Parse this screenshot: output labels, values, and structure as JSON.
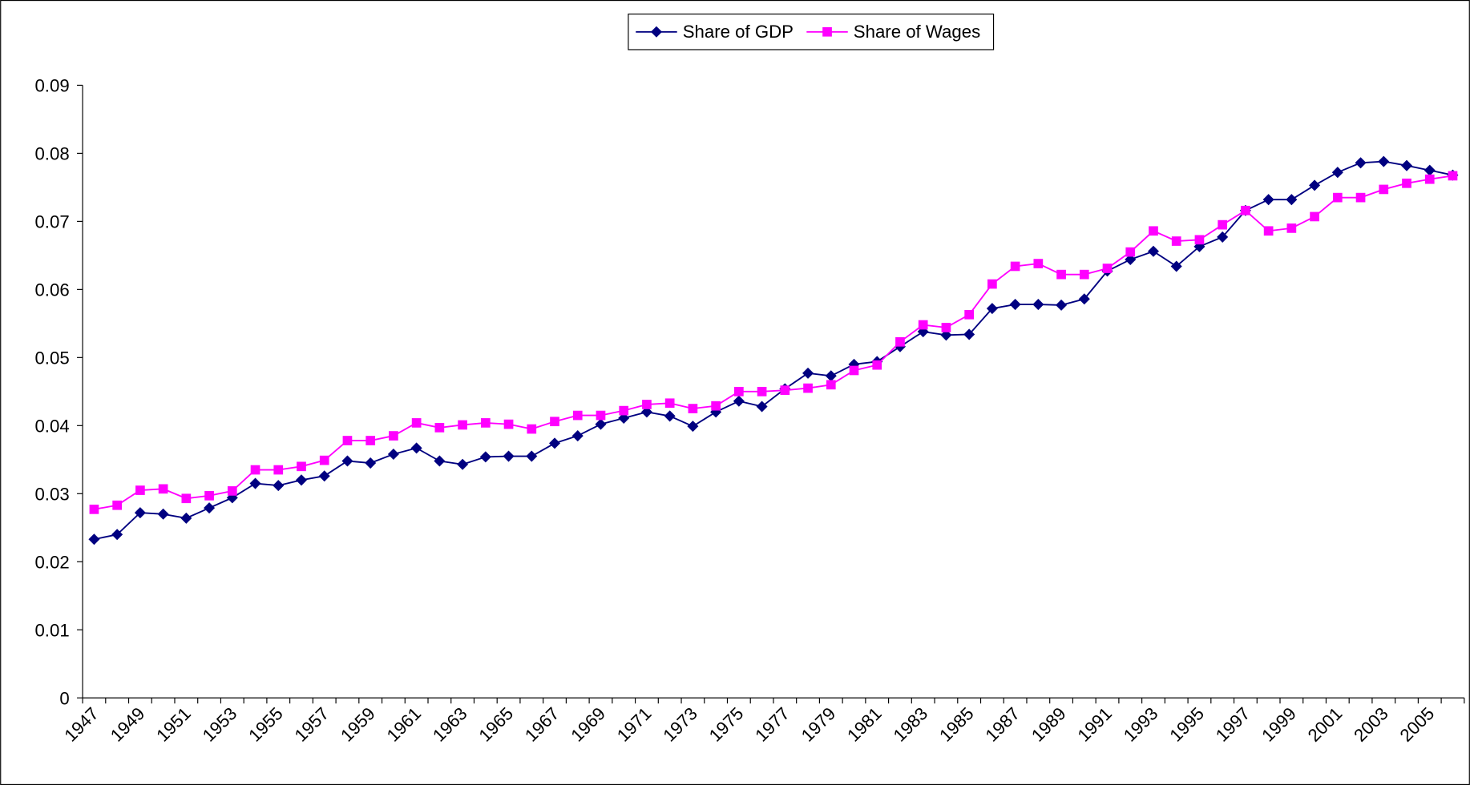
{
  "chart_data": {
    "type": "line",
    "categories": [
      "1947",
      null,
      "1949",
      null,
      "1951",
      null,
      "1953",
      null,
      "1955",
      null,
      "1957",
      null,
      "1959",
      null,
      "1961",
      null,
      "1963",
      null,
      "1965",
      null,
      "1967",
      null,
      "1969",
      null,
      "1971",
      null,
      "1973",
      null,
      "1975",
      null,
      "1977",
      null,
      "1979",
      null,
      "1981",
      null,
      "1983",
      null,
      "1985",
      null,
      "1987",
      null,
      "1989",
      null,
      "1991",
      null,
      "1993",
      null,
      "1995",
      null,
      "1997",
      null,
      "1999",
      null,
      "2001",
      null,
      "2003",
      null,
      "2005",
      null
    ],
    "series": [
      {
        "name": "Share of GDP",
        "color": "#000080",
        "marker": "diamond",
        "values": [
          0.0233,
          0.024,
          0.0272,
          0.027,
          0.0264,
          0.0279,
          0.0294,
          0.0315,
          0.0312,
          0.032,
          0.0326,
          0.0348,
          0.0345,
          0.0358,
          0.0367,
          0.0348,
          0.0343,
          0.0354,
          0.0355,
          0.0355,
          0.0374,
          0.0385,
          0.0402,
          0.0411,
          0.042,
          0.0414,
          0.0399,
          0.042,
          0.0436,
          0.0428,
          0.0454,
          0.0477,
          0.0473,
          0.049,
          0.0494,
          0.0516,
          0.0538,
          0.0533,
          0.0534,
          0.0572,
          0.0578,
          0.0578,
          0.0577,
          0.0586,
          0.0627,
          0.0644,
          0.0656,
          0.0634,
          0.0663,
          0.0677,
          0.0716,
          0.0732,
          0.0732,
          0.0753,
          0.0772,
          0.0786,
          0.0788,
          0.0782,
          0.0775,
          0.0768
        ]
      },
      {
        "name": "Share of Wages",
        "color": "#ff00ff",
        "marker": "square",
        "values": [
          0.0277,
          0.0283,
          0.0305,
          0.0307,
          0.0293,
          0.0297,
          0.0304,
          0.0335,
          0.0335,
          0.034,
          0.0349,
          0.0378,
          0.0378,
          0.0385,
          0.0404,
          0.0397,
          0.0401,
          0.0404,
          0.0402,
          0.0395,
          0.0406,
          0.0415,
          0.0415,
          0.0422,
          0.0431,
          0.0433,
          0.0425,
          0.0429,
          0.045,
          0.045,
          0.0452,
          0.0455,
          0.046,
          0.0481,
          0.0489,
          0.0523,
          0.0548,
          0.0544,
          0.0563,
          0.0608,
          0.0634,
          0.0638,
          0.0622,
          0.0622,
          0.0631,
          0.0655,
          0.0686,
          0.0671,
          0.0673,
          0.0695,
          0.0716,
          0.0686,
          0.069,
          0.0707,
          0.0735,
          0.0735,
          0.0747,
          0.0756,
          0.0762,
          0.0767
        ]
      }
    ],
    "ylim": [
      0,
      0.09
    ],
    "yticks": [
      0,
      0.01,
      0.02,
      0.03,
      0.04,
      0.05,
      0.06,
      0.07,
      0.08,
      0.09
    ],
    "grid": false,
    "legend": "top"
  }
}
